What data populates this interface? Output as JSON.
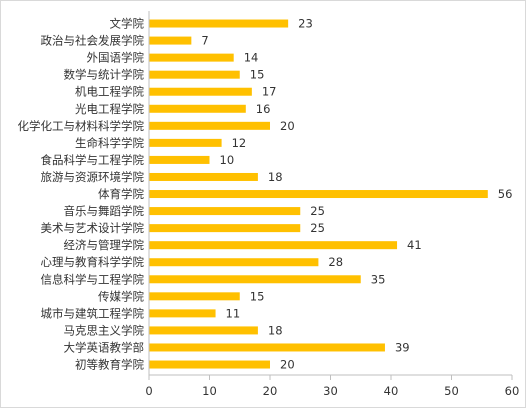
{
  "chart_data": {
    "type": "bar",
    "orientation": "horizontal",
    "categories": [
      "文学院",
      "政治与社会发展学院",
      "外国语学院",
      "数学与统计学院",
      "机电工程学院",
      "光电工程学院",
      "化学化工与材料科学学院",
      "生命科学学院",
      "食品科学与工程学院",
      "旅游与资源环境学院",
      "体育学院",
      "音乐与舞蹈学院",
      "美术与艺术设计学院",
      "经济与管理学院",
      "心理与教育科学学院",
      "信息科学与工程学院",
      "传媒学院",
      "城市与建筑工程学院",
      "马克思主义学院",
      "大学英语教学部",
      "初等教育学院"
    ],
    "values": [
      23,
      7,
      14,
      15,
      17,
      16,
      20,
      12,
      10,
      18,
      56,
      25,
      25,
      41,
      28,
      35,
      15,
      11,
      18,
      39,
      20
    ],
    "xlim": [
      0,
      60
    ],
    "xticks": [
      "0",
      "10",
      "20",
      "30",
      "40",
      "50",
      "60"
    ],
    "grid": false,
    "legend": "none",
    "bar_color": "#FFC000",
    "axis_color": "#bfbfbf"
  }
}
